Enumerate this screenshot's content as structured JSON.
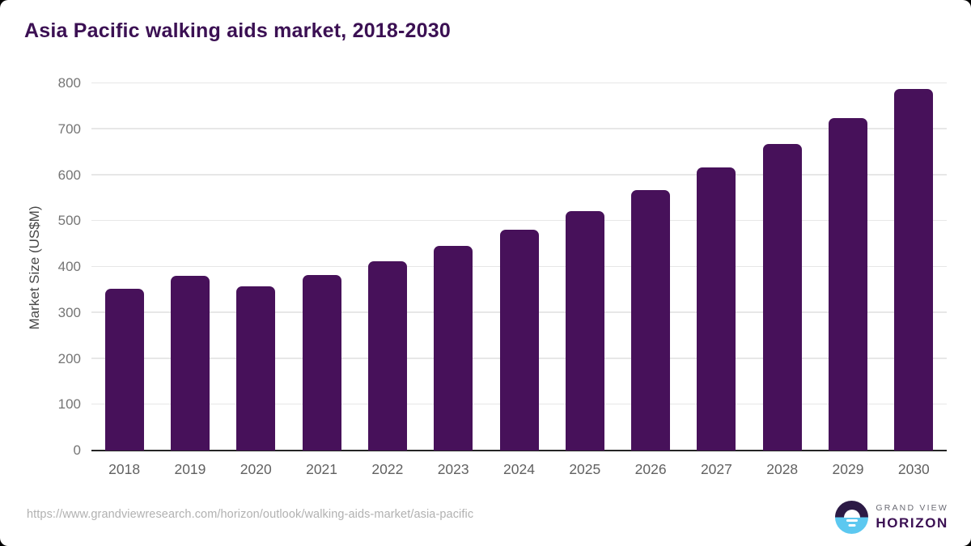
{
  "title": "Asia Pacific walking aids market, 2018-2030",
  "chart_data": {
    "type": "bar",
    "categories": [
      "2018",
      "2019",
      "2020",
      "2021",
      "2022",
      "2023",
      "2024",
      "2025",
      "2026",
      "2027",
      "2028",
      "2029",
      "2030"
    ],
    "values": [
      352,
      381,
      358,
      383,
      413,
      445,
      481,
      522,
      567,
      617,
      668,
      724,
      787
    ],
    "title": "Asia Pacific walking aids market, 2018-2030",
    "xlabel": "",
    "ylabel": "Market Size (US$M)",
    "ylim": [
      0,
      800
    ],
    "yticks": [
      0,
      100,
      200,
      300,
      400,
      500,
      600,
      700,
      800
    ],
    "grid": true,
    "legend": false,
    "bar_color": "#47115a"
  },
  "footer": {
    "source_url": "https://www.grandviewresearch.com/horizon/outlook/walking-aids-market/asia-pacific"
  },
  "logo": {
    "line1": "GRAND VIEW",
    "line2": "HORIZON"
  },
  "colors": {
    "title": "#3b1053",
    "bar": "#47115a",
    "gridline": "#e7e7e7",
    "axis_line": "#252525",
    "tick_label": "#757575",
    "x_label": "#616161",
    "axis_title": "#474747",
    "url_text": "#b1b1b1",
    "logo_purple": "#2c1a45",
    "logo_blue": "#5cc8f0"
  }
}
